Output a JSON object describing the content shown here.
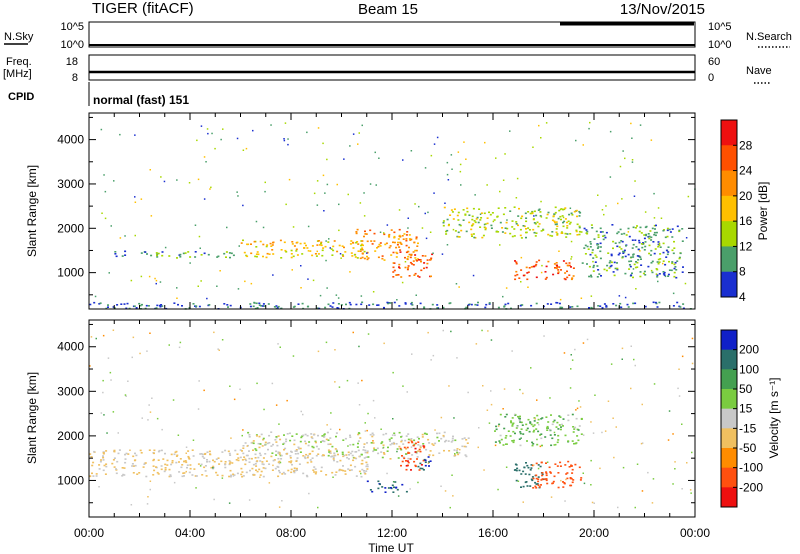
{
  "header": {
    "station": "TIGER (fitACF)",
    "beam": "Beam 15",
    "date": "13/Nov/2015"
  },
  "noise_panel": {
    "left_label": "N.Sky",
    "right_label": "N.Search",
    "tick_top": "10^5",
    "tick_bottom": "10^0",
    "right_tick_top": "10^5",
    "right_tick_bottom": "10^0"
  },
  "freq_panel": {
    "left_label_1": "Freq.",
    "left_label_2": "[MHz]",
    "right_label": "Nave",
    "left_ticks": [
      "18",
      "8"
    ],
    "right_ticks": [
      "60",
      "0"
    ]
  },
  "cpid_panel": {
    "label": "CPID",
    "mode_text": "normal (fast) 151"
  },
  "axes": {
    "ylabel": "Slant Range [km]",
    "xlabel": "Time UT",
    "xticks": [
      "00:00",
      "04:00",
      "08:00",
      "12:00",
      "16:00",
      "20:00",
      "00:00"
    ],
    "yticks": [
      "1000",
      "2000",
      "3000",
      "4000"
    ]
  },
  "colorbars": {
    "power": {
      "label": "Power [dB]",
      "ticks": [
        "28",
        "24",
        "20",
        "16",
        "12",
        "8",
        "4"
      ],
      "colors": [
        "#ee1010",
        "#ff5000",
        "#ff8c00",
        "#ffc000",
        "#a8d800",
        "#4a9f6a",
        "#1a2fd0"
      ]
    },
    "velocity": {
      "label": "Velocity [m s⁻¹]",
      "ticks": [
        "200",
        "100",
        "50",
        "15",
        "-15",
        "-50",
        "-100",
        "-200"
      ],
      "colors": [
        "#1020c8",
        "#2a6f6a",
        "#44a050",
        "#7acc40",
        "#c8c8c8",
        "#f0c060",
        "#ff8c00",
        "#ff5010",
        "#ee1010"
      ]
    }
  },
  "chart_data": [
    {
      "type": "heatmap",
      "title": "Power",
      "xlabel": "Time UT",
      "ylabel": "Slant Range [km]",
      "xlim": [
        0,
        24
      ],
      "ylim": [
        180,
        4600
      ],
      "colorbar": "Power [dB]",
      "features": [
        {
          "t": [
            1,
            6
          ],
          "range": [
            1350,
            1500
          ],
          "power": 10
        },
        {
          "t": [
            6,
            11
          ],
          "range": [
            1350,
            1750
          ],
          "power": 18
        },
        {
          "t": [
            10.5,
            13
          ],
          "range": [
            1300,
            2000
          ],
          "power": 22
        },
        {
          "t": [
            12,
            13.6
          ],
          "range": [
            900,
            1500
          ],
          "power": 26
        },
        {
          "t": [
            16.8,
            19.2
          ],
          "range": [
            850,
            1300
          ],
          "power": 26
        },
        {
          "t": [
            14,
            19.5
          ],
          "range": [
            1800,
            2500
          ],
          "power": 14
        },
        {
          "t": [
            19.5,
            23.5
          ],
          "range": [
            900,
            2100
          ],
          "power": 10
        },
        {
          "t": [
            0,
            24
          ],
          "range": [
            200,
            350
          ],
          "power": 8
        }
      ]
    },
    {
      "type": "heatmap",
      "title": "Velocity",
      "xlabel": "Time UT",
      "ylabel": "Slant Range [km]",
      "xlim": [
        0,
        24
      ],
      "ylim": [
        180,
        4600
      ],
      "colorbar": "Velocity [m s-1]",
      "features": [
        {
          "t": [
            0,
            11
          ],
          "range": [
            1100,
            1700
          ],
          "velocity": -20
        },
        {
          "t": [
            6,
            15
          ],
          "range": [
            1500,
            2100
          ],
          "velocity": 0
        },
        {
          "t": [
            12.3,
            13.3
          ],
          "range": [
            1200,
            1900
          ],
          "velocity": -180
        },
        {
          "t": [
            13,
            13.6
          ],
          "range": [
            1150,
            1550
          ],
          "velocity": 200
        },
        {
          "t": [
            11,
            12.6
          ],
          "range": [
            750,
            1000
          ],
          "velocity": 200
        },
        {
          "t": [
            16.8,
            18
          ],
          "range": [
            850,
            1450
          ],
          "velocity": 150
        },
        {
          "t": [
            17.5,
            19.5
          ],
          "range": [
            850,
            1450
          ],
          "velocity": -150
        },
        {
          "t": [
            16,
            19.5
          ],
          "range": [
            1800,
            2500
          ],
          "velocity": 40
        }
      ]
    }
  ]
}
